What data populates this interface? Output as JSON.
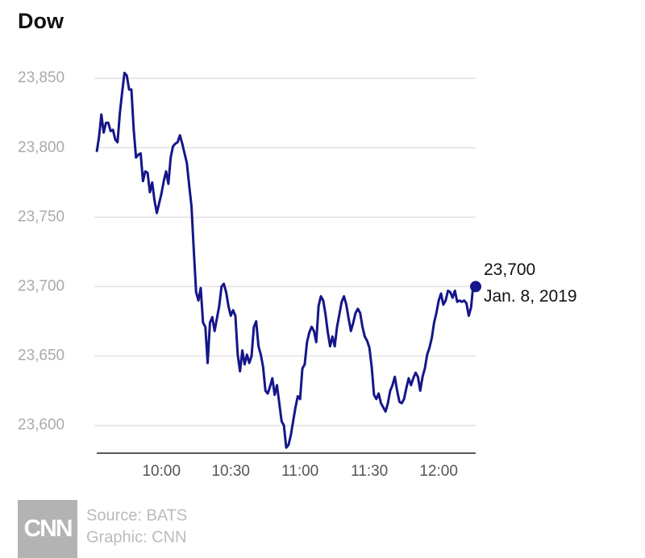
{
  "chart_data": {
    "type": "line",
    "title": "Dow",
    "x": [
      "9:32",
      "9:33",
      "9:34",
      "9:35",
      "9:36",
      "9:37",
      "9:38",
      "9:39",
      "9:40",
      "9:41",
      "9:42",
      "9:43",
      "9:44",
      "9:45",
      "9:46",
      "9:47",
      "9:48",
      "9:49",
      "9:50",
      "9:51",
      "9:52",
      "9:53",
      "9:54",
      "9:55",
      "9:56",
      "9:57",
      "9:58",
      "9:59",
      "10:00",
      "10:01",
      "10:02",
      "10:03",
      "10:04",
      "10:05",
      "10:06",
      "10:07",
      "10:08",
      "10:09",
      "10:10",
      "10:11",
      "10:12",
      "10:13",
      "10:14",
      "10:15",
      "10:16",
      "10:17",
      "10:18",
      "10:19",
      "10:20",
      "10:21",
      "10:22",
      "10:23",
      "10:24",
      "10:25",
      "10:26",
      "10:27",
      "10:28",
      "10:29",
      "10:30",
      "10:31",
      "10:32",
      "10:33",
      "10:34",
      "10:35",
      "10:36",
      "10:37",
      "10:38",
      "10:39",
      "10:40",
      "10:41",
      "10:42",
      "10:43",
      "10:44",
      "10:45",
      "10:46",
      "10:47",
      "10:48",
      "10:49",
      "10:50",
      "10:51",
      "10:52",
      "10:53",
      "10:54",
      "10:55",
      "10:56",
      "10:57",
      "10:58",
      "10:59",
      "11:00",
      "11:01",
      "11:02",
      "11:03",
      "11:04",
      "11:05",
      "11:06",
      "11:07",
      "11:08",
      "11:09",
      "11:10",
      "11:11",
      "11:12",
      "11:13",
      "11:14",
      "11:15",
      "11:16",
      "11:17",
      "11:18",
      "11:19",
      "11:20",
      "11:21",
      "11:22",
      "11:23",
      "11:24",
      "11:25",
      "11:26",
      "11:27",
      "11:28",
      "11:29",
      "11:30",
      "11:31",
      "11:32",
      "11:33",
      "11:34",
      "11:35",
      "11:36",
      "11:37",
      "11:38",
      "11:39",
      "11:40",
      "11:41",
      "11:42",
      "11:43",
      "11:44",
      "11:45",
      "11:46",
      "11:47",
      "11:48",
      "11:49",
      "11:50",
      "11:51",
      "11:52",
      "11:53",
      "11:54",
      "11:55",
      "11:56",
      "11:57",
      "11:58",
      "11:59",
      "12:00",
      "12:01",
      "12:02",
      "12:03",
      "12:04",
      "12:05",
      "12:06",
      "12:07",
      "12:08",
      "12:09",
      "12:10",
      "12:11",
      "12:12",
      "12:13",
      "12:14",
      "12:15",
      "12:16"
    ],
    "values": [
      23797,
      23808,
      23824,
      23811,
      23818,
      23818,
      23812,
      23813,
      23806,
      23804,
      23825,
      23840,
      23854,
      23852,
      23842,
      23842,
      23813,
      23793,
      23795,
      23796,
      23776,
      23783,
      23782,
      23768,
      23775,
      23762,
      23753,
      23760,
      23767,
      23776,
      23783,
      23774,
      23793,
      23801,
      23803,
      23804,
      23809,
      23803,
      23796,
      23789,
      23773,
      23758,
      23726,
      23696,
      23690,
      23699,
      23674,
      23671,
      23645,
      23674,
      23678,
      23668,
      23677,
      23686,
      23700,
      23702,
      23696,
      23686,
      23679,
      23683,
      23679,
      23651,
      23639,
      23654,
      23644,
      23651,
      23645,
      23650,
      23671,
      23675,
      23657,
      23651,
      23642,
      23625,
      23623,
      23628,
      23634,
      23622,
      23629,
      23616,
      23603,
      23600,
      23584,
      23586,
      23593,
      23603,
      23613,
      23621,
      23619,
      23641,
      23644,
      23660,
      23667,
      23671,
      23668,
      23660,
      23686,
      23693,
      23690,
      23680,
      23667,
      23657,
      23664,
      23657,
      23671,
      23680,
      23689,
      23693,
      23687,
      23677,
      23668,
      23674,
      23681,
      23684,
      23681,
      23671,
      23664,
      23661,
      23656,
      23642,
      23622,
      23619,
      23623,
      23616,
      23613,
      23610,
      23616,
      23625,
      23629,
      23635,
      23625,
      23617,
      23616,
      23619,
      23627,
      23634,
      23629,
      23634,
      23638,
      23635,
      23625,
      23635,
      23641,
      23651,
      23656,
      23663,
      23674,
      23681,
      23690,
      23695,
      23687,
      23690,
      23697,
      23696,
      23692,
      23697,
      23689,
      23690,
      23689,
      23690,
      23688,
      23679,
      23685,
      23702,
      23700
    ],
    "color": "#16168a",
    "xlim": [
      "9:32",
      "12:16"
    ],
    "xticks": [
      "10:00",
      "10:30",
      "11:00",
      "11:30",
      "12:00"
    ],
    "ylim": [
      23580,
      23860
    ],
    "yticks": [
      {
        "value": 23600,
        "label": "23,600"
      },
      {
        "value": 23650,
        "label": "23,650"
      },
      {
        "value": 23700,
        "label": "23,700"
      },
      {
        "value": 23750,
        "label": "23,750"
      },
      {
        "value": 23800,
        "label": "23,800"
      },
      {
        "value": 23850,
        "label": "23,850"
      }
    ],
    "grid": true,
    "annotations": [
      {
        "label": "23,700",
        "text": "Jan. 8, 2019"
      }
    ]
  },
  "footer": {
    "logo": "CNN",
    "source": "Source: BATS",
    "graphic": "Graphic: CNN"
  }
}
